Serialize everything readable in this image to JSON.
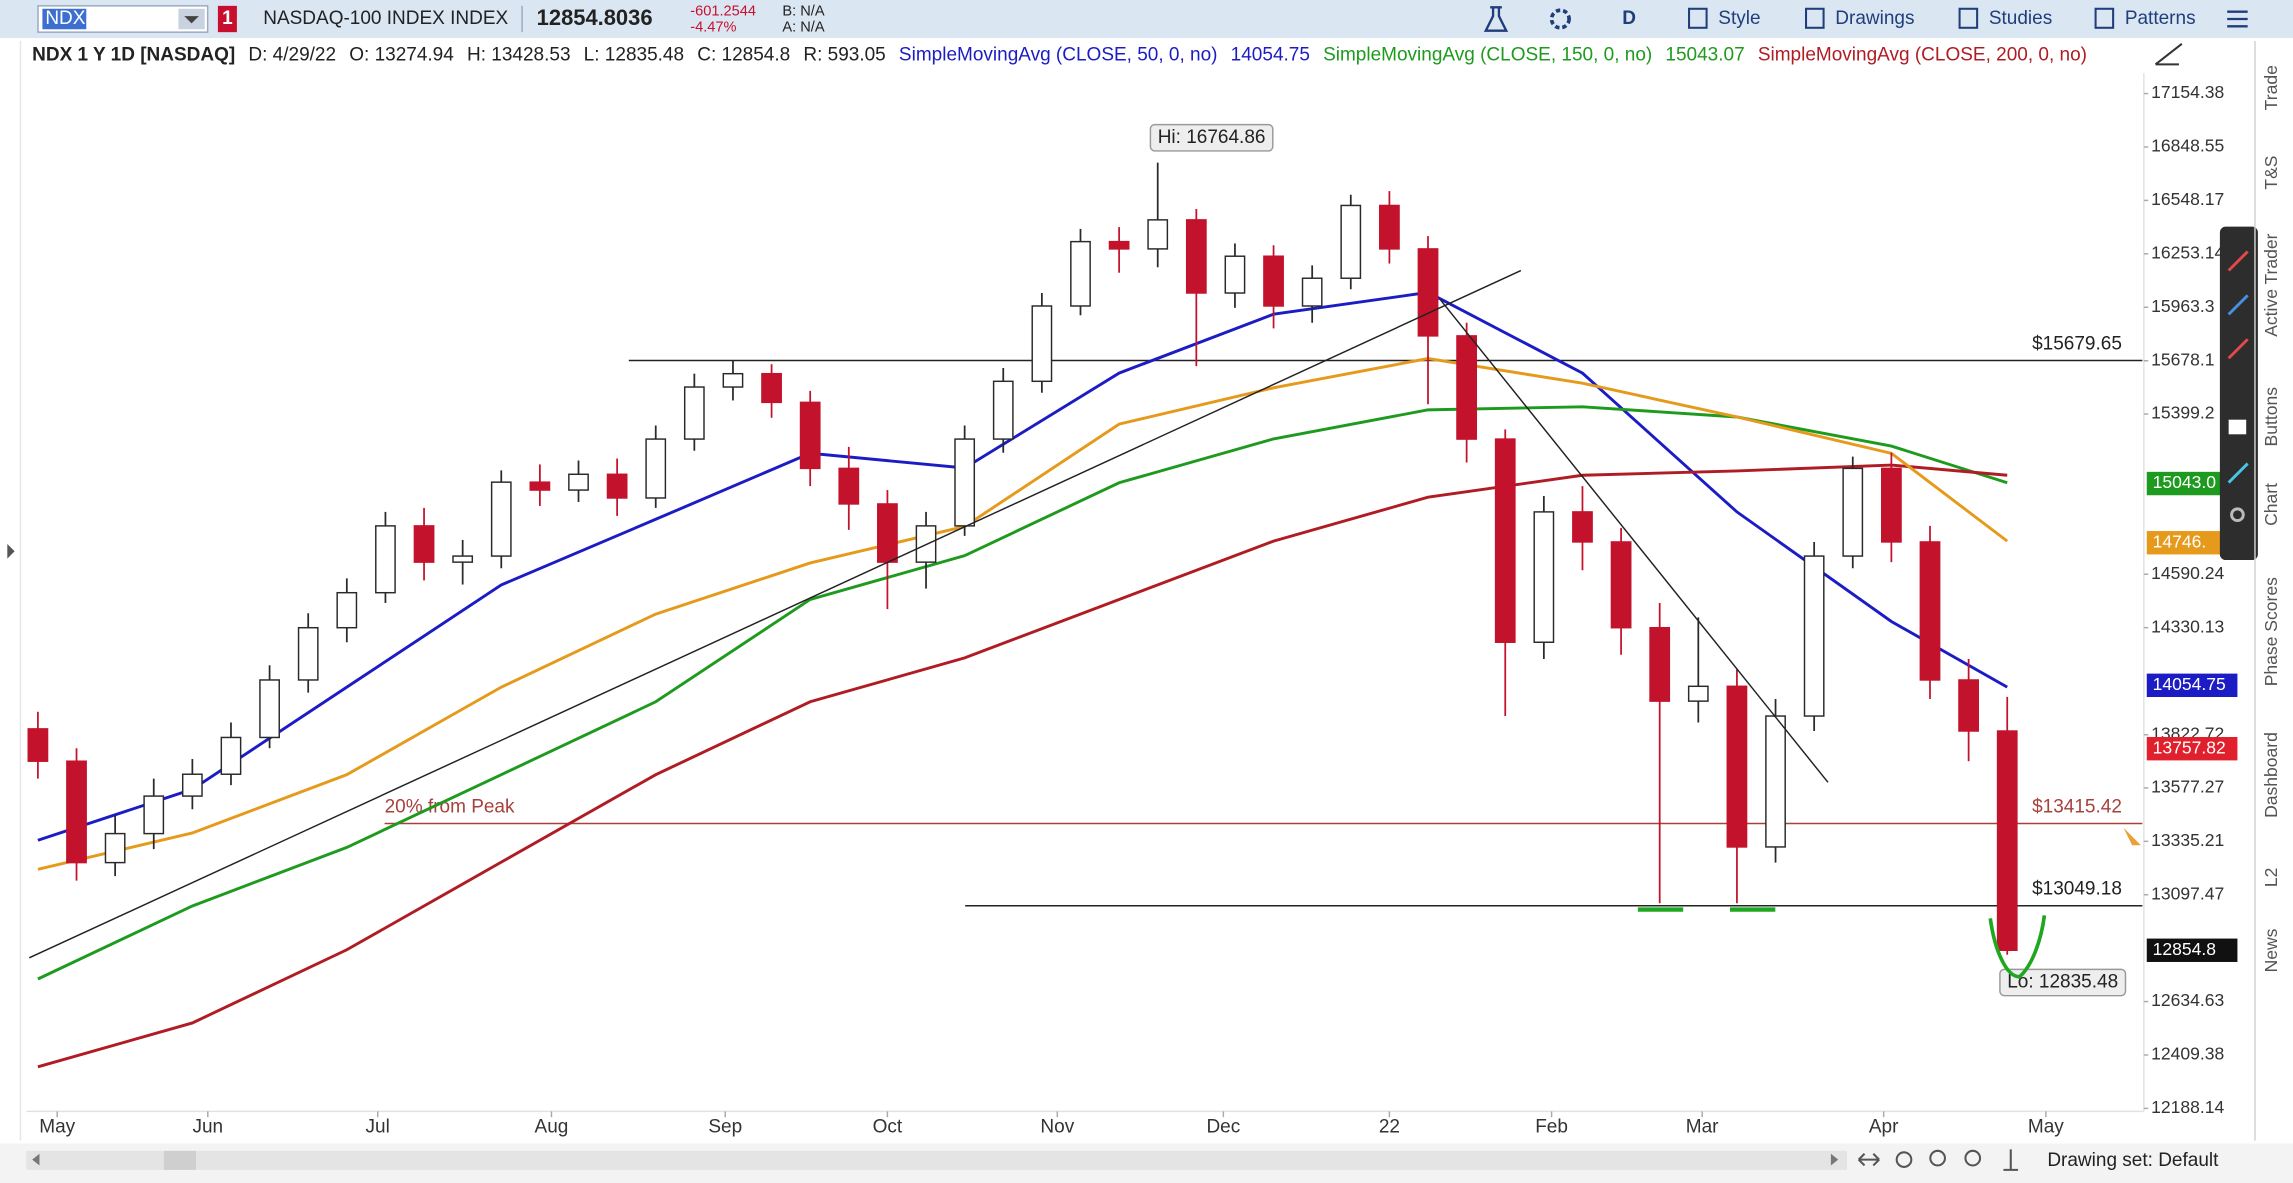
{
  "toolbar": {
    "symbol": "NDX",
    "alert_count": "1",
    "description": "NASDAQ-100 INDEX INDEX",
    "last": "12854.8036",
    "change": "-601.2544",
    "change_pct": "-4.47%",
    "bid": "B: N/A",
    "ask": "A: N/A",
    "period": "D",
    "menus": [
      "Style",
      "Drawings",
      "Studies",
      "Patterns"
    ]
  },
  "header": {
    "instrument": "NDX 1 Y 1D [NASDAQ]",
    "fields": [
      "D: 4/29/22",
      "O: 13274.94",
      "H: 13428.53",
      "L: 12835.48",
      "C: 12854.8",
      "R: 593.05"
    ]
  },
  "side_tabs": [
    "Trade",
    "T&S",
    "Active Trader",
    "Buttons",
    "Chart",
    "Phase Scores",
    "Dashboard",
    "L2",
    "News"
  ],
  "footer": {
    "drawing_set": "Drawing set: Default"
  },
  "chart_data": {
    "type": "candlestick",
    "log_scale": true,
    "up_color": "#2a2a2a",
    "down_color": "#c3122c",
    "open": [
      13850,
      13700,
      13240,
      13370,
      13540,
      13640,
      13810,
      14080,
      14330,
      14500,
      14830,
      14650,
      14680,
      15050,
      15010,
      15090,
      14970,
      15270,
      15540,
      15610,
      15460,
      15120,
      14940,
      14650,
      14830,
      15270,
      15570,
      15970,
      16320,
      16280,
      16440,
      16040,
      16240,
      15970,
      16120,
      16520,
      16280,
      15810,
      15270,
      14260,
      14900,
      14750,
      14330,
      13980,
      14050,
      13310,
      13910,
      14680,
      15120,
      14750,
      14080,
      13840
    ],
    "high": [
      13930,
      13760,
      13450,
      13620,
      13710,
      13880,
      14150,
      14400,
      14570,
      14900,
      14920,
      14760,
      15110,
      15140,
      15160,
      15170,
      15340,
      15610,
      15680,
      15660,
      15520,
      15230,
      15010,
      14900,
      15340,
      15640,
      16040,
      16390,
      16400,
      16760,
      16500,
      16310,
      16300,
      16190,
      16580,
      16600,
      16350,
      15880,
      15320,
      14980,
      15030,
      14820,
      14450,
      14380,
      14130,
      13990,
      14750,
      15180,
      15200,
      14830,
      14180,
      14000
    ],
    "low": [
      13620,
      13160,
      13180,
      13300,
      13480,
      13590,
      13760,
      14020,
      14260,
      14450,
      14560,
      14540,
      14620,
      14930,
      14950,
      14880,
      14920,
      15210,
      15470,
      15380,
      15030,
      14810,
      14420,
      14520,
      14780,
      15200,
      15510,
      15920,
      16150,
      16180,
      15650,
      15960,
      15850,
      15880,
      16060,
      16200,
      15450,
      15150,
      13910,
      14180,
      14610,
      14200,
      13060,
      13880,
      13060,
      13240,
      13840,
      14620,
      14650,
      13990,
      13700,
      12835.48
    ],
    "close": [
      13700,
      13240,
      13370,
      13540,
      13640,
      13810,
      14080,
      14330,
      14500,
      14830,
      14650,
      14680,
      15050,
      15010,
      15090,
      14970,
      15270,
      15540,
      15610,
      15460,
      15120,
      14940,
      14650,
      14830,
      15270,
      15570,
      15970,
      16320,
      16280,
      16440,
      16040,
      16240,
      15970,
      16120,
      16520,
      16280,
      15810,
      15270,
      14260,
      14900,
      14750,
      14330,
      13980,
      14050,
      13310,
      13910,
      14680,
      15120,
      14750,
      14080,
      13840,
      12854.8
    ],
    "series": [
      {
        "name": "SimpleMovingAvg (CLOSE, 50, 0, no)",
        "header_value": "14054.75",
        "color": "#1c1cc4",
        "x": [
          0,
          4,
          8,
          12,
          16,
          20,
          24,
          28,
          32,
          36,
          40,
          44,
          48,
          51
        ],
        "values": [
          13340,
          13571,
          14046,
          14538,
          14863,
          15197,
          15122,
          15613,
          15926,
          16043,
          15613,
          14900,
          14360,
          14046
        ]
      },
      {
        "name": "SimpleMovingAvg (CLOSE, 150, 0, no)",
        "header_value": "15043.07",
        "color": "#1e9a1e",
        "x": [
          0,
          4,
          8,
          12,
          16,
          20,
          24,
          28,
          32,
          36,
          40,
          44,
          48,
          51
        ],
        "values": [
          12731,
          13048,
          13308,
          13638,
          13977,
          14467,
          14682,
          15047,
          15271,
          15421,
          15437,
          15384,
          15234,
          15047
        ]
      },
      {
        "name": "SimpleMovingAvg (CLOSE, 200, 0, no)",
        "color": "#b01c24",
        "x": [
          0,
          4,
          8,
          12,
          16,
          20,
          24,
          28,
          32,
          36,
          40,
          44,
          48,
          51
        ],
        "values": [
          12360,
          12544,
          12857,
          13242,
          13638,
          13977,
          14185,
          14467,
          14754,
          14974,
          15085,
          15107,
          15137,
          15085
        ]
      },
      {
        "color": "#e59a1c",
        "x": [
          0,
          4,
          8,
          12,
          16,
          20,
          24,
          28,
          32,
          36,
          40,
          44,
          48,
          51
        ],
        "values": [
          13210,
          13373,
          13638,
          14046,
          14396,
          14646,
          14827,
          15347,
          15536,
          15690,
          15560,
          15384,
          15197,
          14754
        ]
      }
    ],
    "xlim": [
      -0.3,
      54.5
    ],
    "xticks": [
      {
        "value": 0.5,
        "label": "May"
      },
      {
        "value": 4.4,
        "label": "Jun"
      },
      {
        "value": 8.8,
        "label": "Jul"
      },
      {
        "value": 13.3,
        "label": "Aug"
      },
      {
        "value": 17.8,
        "label": "Sep"
      },
      {
        "value": 22,
        "label": "Oct"
      },
      {
        "value": 26.4,
        "label": "Nov"
      },
      {
        "value": 30.7,
        "label": "Dec"
      },
      {
        "value": 35,
        "label": "22"
      },
      {
        "value": 39.2,
        "label": "Feb"
      },
      {
        "value": 43.1,
        "label": "Mar"
      },
      {
        "value": 47.8,
        "label": "Apr"
      },
      {
        "value": 52,
        "label": "May"
      }
    ],
    "ylim": [
      12176,
      17273
    ],
    "yticks": [
      17154.38,
      16848.55,
      16548.17,
      16253.14,
      15963.3,
      15678.1,
      15399.2,
      14590.24,
      14330.13,
      13822.72,
      13577.27,
      13335.21,
      13097.47,
      12634.63,
      12409.38,
      12188.14
    ],
    "levels": [
      {
        "value": 15679.65,
        "label": "$15679.65",
        "color": "#222222"
      },
      {
        "value": 13415.42,
        "label": "$13415.42",
        "note": "20% from Peak",
        "color": "#a8403c"
      },
      {
        "value": 13049.18,
        "label": "$13049.18",
        "color": "#222222"
      }
    ],
    "price_tags": [
      {
        "value": 15043.0,
        "label": "15043.0",
        "color": "#1e9a1e"
      },
      {
        "value": 14746,
        "label": "14746.",
        "color": "#e59a1c"
      },
      {
        "value": 14054.75,
        "label": "14054.75",
        "color": "#1c1cc4"
      },
      {
        "value": 13757.82,
        "label": "13757.82",
        "color": "#e0202c"
      },
      {
        "value": 12854.8,
        "label": "12854.8",
        "color": "#111111"
      }
    ],
    "hi_label": "Hi: 16764.86",
    "lo_label": "Lo: 12835.48"
  }
}
